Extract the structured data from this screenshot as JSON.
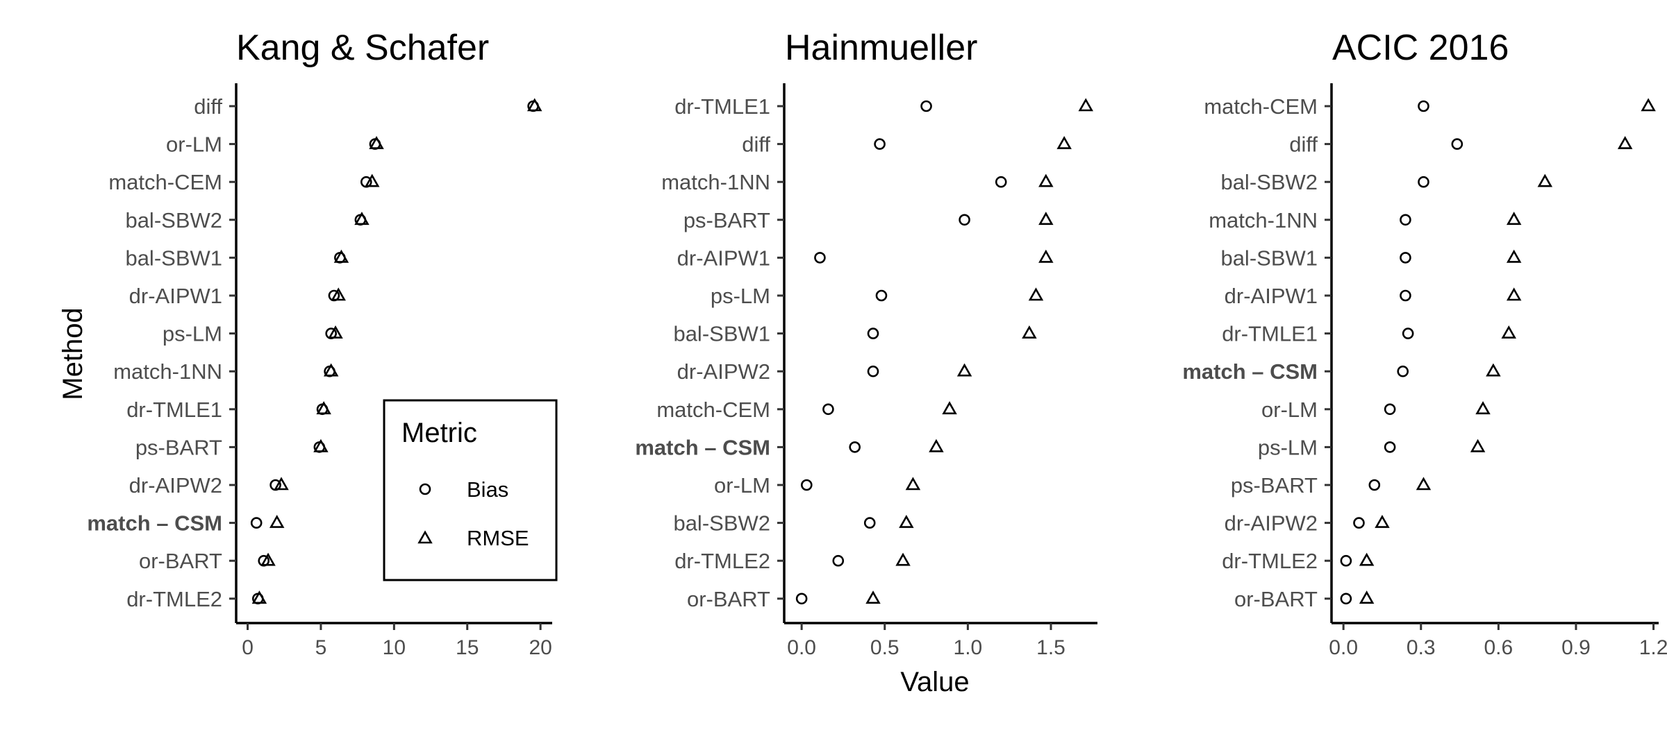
{
  "figure": {
    "x_axis_title": "Value",
    "y_axis_title": "Method"
  },
  "legend": {
    "title": "Metric",
    "items": [
      {
        "label": "Bias",
        "shape": "circle"
      },
      {
        "label": "RMSE",
        "shape": "triangle"
      }
    ]
  },
  "chart_data": [
    {
      "type": "scatter",
      "title": "Kang & Schafer",
      "xlim": [
        -0.5,
        20.8
      ],
      "xticks": [
        0,
        5,
        10,
        15,
        20
      ],
      "tick_labels": [
        "0",
        "5",
        "10",
        "15",
        "20"
      ],
      "methods": [
        "diff",
        "or-LM",
        "match-CEM",
        "bal-SBW2",
        "bal-SBW1",
        "dr-AIPW1",
        "ps-LM",
        "match-1NN",
        "dr-TMLE1",
        "ps-BART",
        "dr-AIPW2",
        "match – CSM",
        "or-BART",
        "dr-TMLE2"
      ],
      "highlight": "match – CSM",
      "series": [
        {
          "name": "Bias",
          "values": [
            19.5,
            8.7,
            8.1,
            7.7,
            6.3,
            5.9,
            5.7,
            5.6,
            5.1,
            4.9,
            1.9,
            0.6,
            1.1,
            0.7
          ]
        },
        {
          "name": "RMSE",
          "values": [
            19.6,
            8.8,
            8.5,
            7.8,
            6.4,
            6.2,
            6.0,
            5.7,
            5.2,
            5.0,
            2.3,
            2.0,
            1.4,
            0.8
          ]
        }
      ]
    },
    {
      "type": "scatter",
      "title": "Hainmueller",
      "xlim": [
        -0.08,
        1.78
      ],
      "xticks": [
        0,
        0.5,
        1,
        1.5
      ],
      "tick_labels": [
        "0.0",
        "0.5",
        "1.0",
        "1.5"
      ],
      "methods": [
        "dr-TMLE1",
        "diff",
        "match-1NN",
        "ps-BART",
        "dr-AIPW1",
        "ps-LM",
        "bal-SBW1",
        "dr-AIPW2",
        "match-CEM",
        "match – CSM",
        "or-LM",
        "bal-SBW2",
        "dr-TMLE2",
        "or-BART"
      ],
      "highlight": "match – CSM",
      "series": [
        {
          "name": "Bias",
          "values": [
            0.75,
            0.47,
            1.2,
            0.98,
            0.11,
            0.48,
            0.43,
            0.43,
            0.16,
            0.32,
            0.03,
            0.41,
            0.22,
            0.0
          ]
        },
        {
          "name": "RMSE",
          "values": [
            1.71,
            1.58,
            1.47,
            1.47,
            1.47,
            1.41,
            1.37,
            0.98,
            0.89,
            0.81,
            0.67,
            0.63,
            0.61,
            0.43
          ]
        }
      ]
    },
    {
      "type": "scatter",
      "title": "ACIC 2016",
      "xlim": [
        -0.03,
        1.22
      ],
      "xticks": [
        0,
        0.3,
        0.6,
        0.9,
        1.2
      ],
      "tick_labels": [
        "0.0",
        "0.3",
        "0.6",
        "0.9",
        "1.2"
      ],
      "methods": [
        "match-CEM",
        "diff",
        "bal-SBW2",
        "match-1NN",
        "bal-SBW1",
        "dr-AIPW1",
        "dr-TMLE1",
        "match – CSM",
        "or-LM",
        "ps-LM",
        "ps-BART",
        "dr-AIPW2",
        "dr-TMLE2",
        "or-BART"
      ],
      "highlight": "match – CSM",
      "series": [
        {
          "name": "Bias",
          "values": [
            0.31,
            0.44,
            0.31,
            0.24,
            0.24,
            0.24,
            0.25,
            0.23,
            0.18,
            0.18,
            0.12,
            0.06,
            0.01,
            0.01
          ]
        },
        {
          "name": "RMSE",
          "values": [
            1.18,
            1.09,
            0.78,
            0.66,
            0.66,
            0.66,
            0.64,
            0.58,
            0.54,
            0.52,
            0.31,
            0.15,
            0.09,
            0.09
          ]
        }
      ]
    }
  ]
}
